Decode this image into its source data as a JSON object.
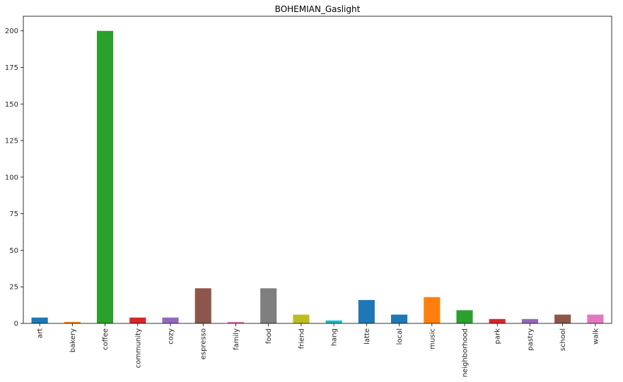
{
  "chart_data": {
    "type": "bar",
    "title": "BOHEMIAN_Gaslight",
    "xlabel": "",
    "ylabel": "",
    "categories": [
      "art",
      "bakery",
      "coffee",
      "community",
      "cozy",
      "espresso",
      "family",
      "food",
      "friend",
      "hang",
      "latte",
      "local",
      "music",
      "neighborhood",
      "park",
      "pastry",
      "school",
      "walk"
    ],
    "values": [
      4,
      1,
      200,
      4,
      4,
      24,
      1,
      24,
      6,
      2,
      16,
      6,
      18,
      9,
      3,
      3,
      6,
      6
    ],
    "colors": [
      "#1f77b4",
      "#ff7f0e",
      "#2ca02c",
      "#d62728",
      "#9467bd",
      "#8c564b",
      "#e377c2",
      "#7f7f7f",
      "#bcbd22",
      "#17becf",
      "#1f77b4",
      "#1f77b4",
      "#ff7f0e",
      "#2ca02c",
      "#d62728",
      "#9467bd",
      "#8c564b",
      "#e377c2"
    ],
    "ylim": [
      0,
      210
    ],
    "yticks": [
      0,
      25,
      50,
      75,
      100,
      125,
      150,
      175,
      200
    ],
    "grid": false,
    "legend": "none"
  }
}
